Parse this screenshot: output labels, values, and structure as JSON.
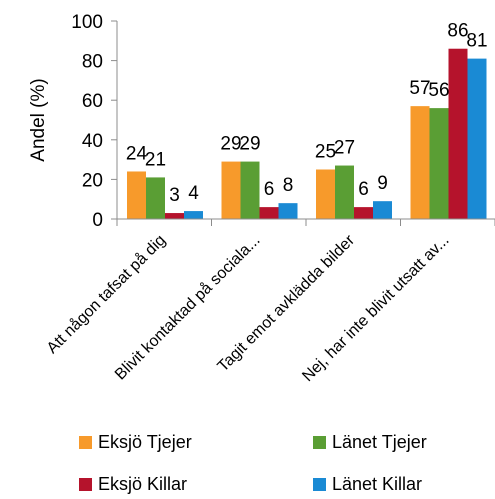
{
  "chart_data": {
    "type": "bar",
    "title": "",
    "xlabel": "",
    "ylabel": "Andel (%)",
    "ylim": [
      0,
      100
    ],
    "yticks": [
      0,
      20,
      40,
      60,
      80,
      100
    ],
    "categories": [
      "Att någon tafsat på dig",
      "Blivit kontaktad på sociala...",
      "Tagit emot avklädda bilder",
      "Nej, har inte blivit utsatt av..."
    ],
    "series": [
      {
        "name": "Eksjö Tjejer",
        "color": "#f79a2b",
        "values": [
          24,
          29,
          25,
          57
        ]
      },
      {
        "name": "Länet Tjejer",
        "color": "#5a9e34",
        "values": [
          21,
          29,
          27,
          56
        ]
      },
      {
        "name": "Eksjö Killar",
        "color": "#b5132c",
        "values": [
          3,
          6,
          6,
          86
        ]
      },
      {
        "name": "Länet Killar",
        "color": "#1a8ad4",
        "values": [
          4,
          8,
          9,
          81
        ]
      }
    ],
    "grid": false,
    "legend_position": "bottom"
  }
}
